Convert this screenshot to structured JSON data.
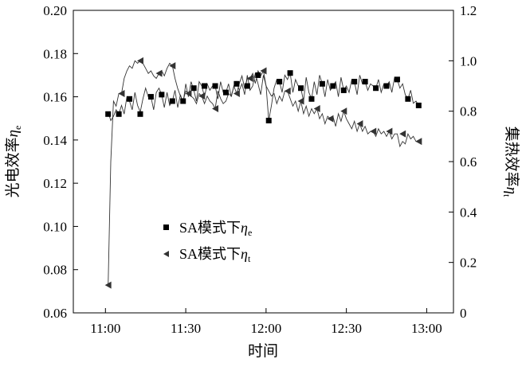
{
  "chart_data": {
    "type": "scatter",
    "xlabel": "时间",
    "y_left_label": "光电效率",
    "y_left_label_symbol": "η",
    "y_left_label_subscript": "e",
    "y_right_label": "集热效率",
    "y_right_label_symbol": "η",
    "y_right_label_subscript": "t",
    "x_ticks": [
      "11:00",
      "11:30",
      "12:00",
      "12:30",
      "13:00"
    ],
    "x_tick_minutes": [
      0,
      30,
      60,
      90,
      120
    ],
    "xlim": [
      -12,
      130
    ],
    "y_left_ticks": [
      "0.06",
      "0.08",
      "0.10",
      "0.12",
      "0.14",
      "0.16",
      "0.18",
      "0.20"
    ],
    "ylim_left": [
      0.06,
      0.2
    ],
    "y_right_ticks": [
      "0",
      "0.2",
      "0.4",
      "0.6",
      "0.8",
      "1.0",
      "1.2"
    ],
    "ylim_right": [
      0,
      1.2
    ],
    "grid": false,
    "legend_position": "lower-center",
    "series": [
      {
        "name": "SA模式下",
        "name_symbol": "η",
        "name_subscript": "e",
        "axis": "left",
        "marker": "square",
        "x": [
          1,
          5,
          9,
          13,
          17,
          21,
          25,
          29,
          33,
          37,
          41,
          45,
          49,
          53,
          57,
          61,
          65,
          69,
          73,
          77,
          81,
          85,
          89,
          93,
          97,
          101,
          105,
          109,
          113,
          117
        ],
        "y": [
          0.152,
          0.152,
          0.159,
          0.152,
          0.16,
          0.161,
          0.158,
          0.158,
          0.164,
          0.165,
          0.165,
          0.162,
          0.166,
          0.165,
          0.17,
          0.149,
          0.167,
          0.171,
          0.164,
          0.159,
          0.166,
          0.165,
          0.163,
          0.167,
          0.167,
          0.164,
          0.165,
          0.168,
          0.159,
          0.156
        ]
      },
      {
        "name": "SA模式下",
        "name_symbol": "η",
        "name_subscript": "t",
        "axis": "right",
        "marker": "triangle-left",
        "x": [
          1,
          6,
          13,
          20,
          25,
          31,
          36,
          41,
          49,
          54,
          59,
          68,
          73,
          79,
          84,
          89,
          95,
          100,
          106,
          111,
          117
        ],
        "y": [
          0.11,
          0.87,
          1.0,
          0.95,
          0.98,
          0.87,
          0.86,
          0.81,
          0.87,
          0.93,
          0.96,
          0.88,
          0.84,
          0.81,
          0.77,
          0.8,
          0.75,
          0.72,
          0.72,
          0.71,
          0.68
        ]
      }
    ],
    "trace_x": [
      1,
      2,
      3,
      4,
      5,
      6,
      7,
      8,
      9,
      10,
      11,
      12,
      13,
      14,
      15,
      16,
      17,
      18,
      19,
      20,
      21,
      22,
      23,
      24,
      25,
      26,
      27,
      28,
      29,
      30,
      31,
      32,
      33,
      34,
      35,
      36,
      37,
      38,
      39,
      40,
      41,
      42,
      43,
      44,
      45,
      46,
      47,
      48,
      49,
      50,
      51,
      52,
      53,
      54,
      55,
      56,
      57,
      58,
      59,
      60,
      61,
      62,
      63,
      64,
      65,
      66,
      67,
      68,
      69,
      70,
      71,
      72,
      73,
      74,
      75,
      76,
      77,
      78,
      79,
      80,
      81,
      82,
      83,
      84,
      85,
      86,
      87,
      88,
      89,
      90,
      91,
      92,
      93,
      94,
      95,
      96,
      97,
      98,
      99,
      100,
      101,
      102,
      103,
      104,
      105,
      106,
      107,
      108,
      109,
      110,
      111,
      112,
      113,
      114,
      115,
      116,
      117
    ],
    "trace_y_left_e": [
      0.153,
      0.149,
      0.151,
      0.154,
      0.152,
      0.156,
      0.152,
      0.16,
      0.158,
      0.154,
      0.162,
      0.156,
      0.153,
      0.159,
      0.164,
      0.16,
      0.16,
      0.154,
      0.162,
      0.164,
      0.161,
      0.155,
      0.162,
      0.156,
      0.158,
      0.163,
      0.155,
      0.161,
      0.157,
      0.166,
      0.16,
      0.167,
      0.163,
      0.158,
      0.167,
      0.165,
      0.16,
      0.166,
      0.163,
      0.165,
      0.165,
      0.159,
      0.167,
      0.162,
      0.162,
      0.166,
      0.16,
      0.165,
      0.167,
      0.163,
      0.166,
      0.161,
      0.17,
      0.163,
      0.165,
      0.171,
      0.166,
      0.161,
      0.17,
      0.165,
      0.149,
      0.156,
      0.164,
      0.168,
      0.167,
      0.162,
      0.17,
      0.168,
      0.171,
      0.162,
      0.168,
      0.165,
      0.164,
      0.158,
      0.169,
      0.162,
      0.159,
      0.167,
      0.161,
      0.17,
      0.166,
      0.16,
      0.168,
      0.163,
      0.165,
      0.167,
      0.16,
      0.169,
      0.163,
      0.165,
      0.162,
      0.168,
      0.167,
      0.161,
      0.17,
      0.166,
      0.167,
      0.163,
      0.166,
      0.165,
      0.164,
      0.168,
      0.162,
      0.166,
      0.165,
      0.167,
      0.162,
      0.169,
      0.168,
      0.164,
      0.166,
      0.161,
      0.159,
      0.163,
      0.157,
      0.158,
      0.156
    ],
    "trace_y_right_t": [
      0.11,
      0.6,
      0.84,
      0.82,
      0.87,
      0.87,
      0.93,
      0.96,
      0.98,
      0.97,
      1.0,
      0.99,
      1.0,
      0.99,
      0.97,
      0.95,
      0.96,
      0.94,
      0.93,
      0.95,
      0.96,
      0.94,
      0.97,
      0.99,
      0.98,
      0.93,
      0.89,
      0.86,
      0.84,
      0.88,
      0.87,
      0.86,
      0.85,
      0.83,
      0.87,
      0.86,
      0.83,
      0.86,
      0.84,
      0.83,
      0.81,
      0.88,
      0.85,
      0.83,
      0.84,
      0.87,
      0.86,
      0.9,
      0.87,
      0.91,
      0.94,
      0.89,
      0.93,
      0.93,
      0.95,
      0.91,
      0.96,
      0.94,
      0.96,
      0.9,
      0.88,
      0.86,
      0.87,
      0.83,
      0.86,
      0.84,
      0.88,
      0.88,
      0.85,
      0.82,
      0.84,
      0.8,
      0.84,
      0.79,
      0.82,
      0.78,
      0.81,
      0.79,
      0.81,
      0.77,
      0.79,
      0.75,
      0.78,
      0.77,
      0.78,
      0.74,
      0.79,
      0.76,
      0.8,
      0.77,
      0.75,
      0.73,
      0.76,
      0.72,
      0.75,
      0.72,
      0.74,
      0.71,
      0.72,
      0.72,
      0.7,
      0.73,
      0.71,
      0.72,
      0.7,
      0.72,
      0.69,
      0.71,
      0.71,
      0.66,
      0.68,
      0.67,
      0.71,
      0.69,
      0.7,
      0.68,
      0.68
    ]
  }
}
